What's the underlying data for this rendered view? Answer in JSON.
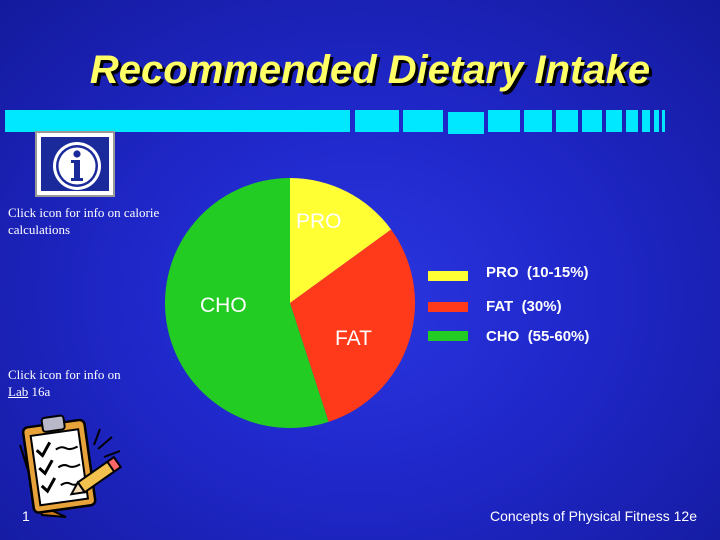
{
  "slide": {
    "title": "Recommended Dietary Intake",
    "info_text": "Click icon for info on calorie calculations",
    "lab_text_prefix": "Click icon for info on ",
    "lab_link": "Lab",
    "lab_text_suffix": " 16a",
    "page_number": "1",
    "footer": "Concepts of Physical Fitness 12e"
  },
  "icons": {
    "info": "info-icon",
    "clipboard": "clipboard-icon"
  },
  "colors": {
    "background": "#1f27c9",
    "title": "#ffff66",
    "accent_bar": "#00e8ff",
    "PRO": "#ffff33",
    "FAT": "#ff3a1a",
    "CHO": "#22cc22"
  },
  "chart_data": {
    "type": "pie",
    "title": "",
    "slices": [
      {
        "label": "PRO",
        "value": 15,
        "color": "#ffff33"
      },
      {
        "label": "FAT",
        "value": 30,
        "color": "#ff3a1a"
      },
      {
        "label": "CHO",
        "value": 55,
        "color": "#22cc22"
      }
    ],
    "legend": [
      {
        "label": "PRO",
        "range": "(10-15%)",
        "color": "#ffff33"
      },
      {
        "label": "FAT",
        "range": "(30%)",
        "color": "#ff3a1a"
      },
      {
        "label": "CHO",
        "range": "(55-60%)",
        "color": "#22cc22"
      }
    ],
    "legend_position": "right"
  }
}
